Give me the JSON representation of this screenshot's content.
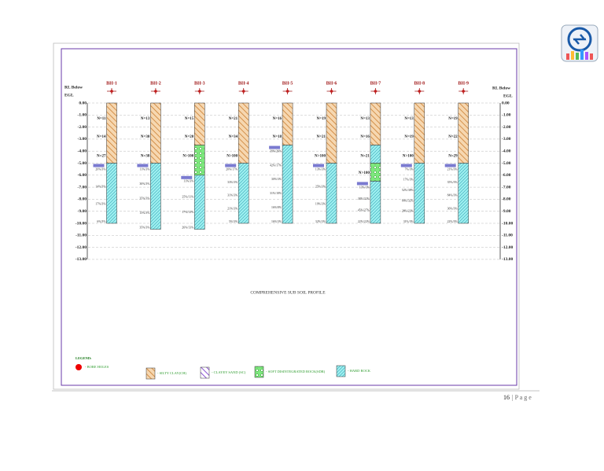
{
  "header": {
    "rl_left": "RL Below",
    "egl_left": "EGL",
    "rl_right": "RL Below",
    "egl_right": "EGL"
  },
  "depth_ticks": [
    {
      "value": 0,
      "label": "0.00"
    },
    {
      "value": -1,
      "label": "-1.00"
    },
    {
      "value": -2,
      "label": "-2.00"
    },
    {
      "value": -3,
      "label": "-3.00"
    },
    {
      "value": -4,
      "label": "-4.00"
    },
    {
      "value": -5,
      "label": "-5.00"
    },
    {
      "value": -6,
      "label": "-6.00"
    },
    {
      "value": -7,
      "label": "-7.00"
    },
    {
      "value": -8,
      "label": "-8.00"
    },
    {
      "value": -9,
      "label": "-9.00"
    },
    {
      "value": -10,
      "label": "-10.00"
    },
    {
      "value": -11,
      "label": "-11.00"
    },
    {
      "value": -12,
      "label": "-12.00"
    },
    {
      "value": -13,
      "label": "-13.00"
    }
  ],
  "boreholes": [
    {
      "name": "BH-1",
      "layers": [
        {
          "type": "clay",
          "top": 0,
          "bottom": -5
        },
        {
          "type": "rock",
          "top": -5,
          "bottom": -10
        }
      ],
      "n_values": [
        "N=11",
        "N=14",
        "N=27"
      ],
      "notes": [
        "20%/3%",
        "14%/3%",
        "17%/3%",
        "6%/3%"
      ]
    },
    {
      "name": "BH-2",
      "layers": [
        {
          "type": "clay",
          "top": 0,
          "bottom": -5
        },
        {
          "type": "rock",
          "top": -5,
          "bottom": -10.5
        }
      ],
      "n_values": [
        "N=13",
        "N=30",
        "N=38"
      ],
      "notes": [
        "11%/3%",
        "30%/3%",
        "35%/3%",
        "15%/3%",
        "35%/3%"
      ]
    },
    {
      "name": "BH-3",
      "layers": [
        {
          "type": "clay",
          "top": 0,
          "bottom": -3.5
        },
        {
          "type": "sdr",
          "top": -3.5,
          "bottom": -6
        },
        {
          "type": "rock",
          "top": -6,
          "bottom": -10.5
        }
      ],
      "n_values": [
        "N=15",
        "N=20",
        "N>100"
      ],
      "notes": [
        "11%/3%",
        "25%/11%",
        "17%/13%",
        "26%/13%"
      ]
    },
    {
      "name": "BH-4",
      "layers": [
        {
          "type": "clay",
          "top": 0,
          "bottom": -5
        },
        {
          "type": "rock",
          "top": -5,
          "bottom": -10
        }
      ],
      "n_values": [
        "N=21",
        "N=34",
        "N>100"
      ],
      "notes": [
        "20%/17%",
        "33%/3%",
        "31%/3%",
        "21%/3%",
        "5%/3%"
      ]
    },
    {
      "name": "BH-5",
      "layers": [
        {
          "type": "clay",
          "top": 0,
          "bottom": -3.5
        },
        {
          "type": "rock",
          "top": -3.5,
          "bottom": -10
        }
      ],
      "n_values": [
        "N=16",
        "N=18"
      ],
      "notes": [
        "39%/26%",
        "42%/17%",
        "30%/3%",
        "31%/18%",
        "16%/8%",
        "16%/3%"
      ]
    },
    {
      "name": "BH-6",
      "layers": [
        {
          "type": "clay",
          "top": 0,
          "bottom": -5
        },
        {
          "type": "rock",
          "top": -5,
          "bottom": -10
        }
      ],
      "n_values": [
        "N=19",
        "N=21",
        "N>100"
      ],
      "notes": [
        "13%/3%",
        "25%/3%",
        "19%/3%",
        "32%/3%"
      ]
    },
    {
      "name": "BH-7",
      "layers": [
        {
          "type": "clay",
          "top": 0,
          "bottom": -3.5
        },
        {
          "type": "rock",
          "top": -3.5,
          "bottom": -5
        },
        {
          "type": "sdr",
          "top": -5,
          "bottom": -6.5
        },
        {
          "type": "rock",
          "top": -6.5,
          "bottom": -10
        }
      ],
      "n_values": [
        "N=13",
        "N=16",
        "N=21",
        "N>100"
      ],
      "notes": [
        "13%/3%",
        "38%/32%",
        "45%/27%",
        "22%/22%"
      ]
    },
    {
      "name": "BH-8",
      "layers": [
        {
          "type": "clay",
          "top": 0,
          "bottom": -5
        },
        {
          "type": "rock",
          "top": -5,
          "bottom": -10
        }
      ],
      "n_values": [
        "N=13",
        "N=19",
        "N>100"
      ],
      "notes": [
        "7%/3%",
        "17%/3%",
        "52%/38%",
        "84%/32%",
        "28%/22%",
        "31%/3%"
      ]
    },
    {
      "name": "BH-9",
      "layers": [
        {
          "type": "clay",
          "top": 0,
          "bottom": -5
        },
        {
          "type": "rock",
          "top": -5,
          "bottom": -10
        }
      ],
      "n_values": [
        "N=19",
        "N=22",
        "N=29"
      ],
      "notes": [
        "21%/3%",
        "35%/3%",
        "84%/3%",
        "36%/3%",
        "22%/3%"
      ]
    }
  ],
  "title": "COMPREHENSIVE SUB SOIL PROFILE",
  "legend": {
    "heading": "LEGEND:",
    "bore_holes": "- BORE HOLES",
    "clay": "- SILTY CLAY(CH)",
    "sand": "- CLAYEY SAND (SC)",
    "sdr": "- SOFT DISINTEGRATED ROCK(SDR)",
    "rock": "- HARD ROCK"
  },
  "footer": {
    "page": "16",
    "page_word": "| P a g e"
  }
}
